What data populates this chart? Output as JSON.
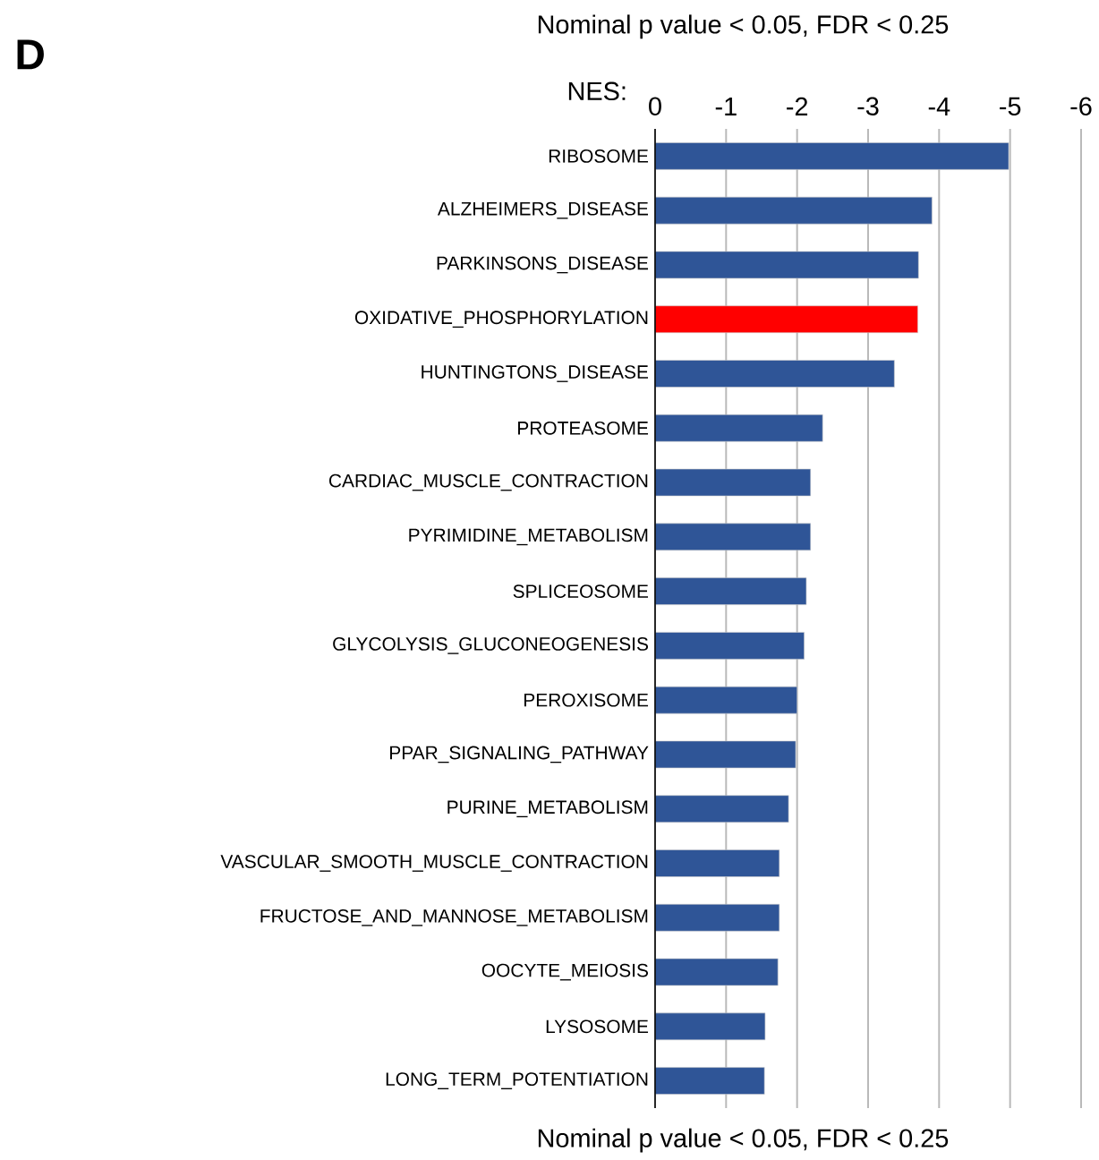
{
  "chart_data": {
    "type": "bar",
    "orientation": "horizontal",
    "xlabel": "NES:",
    "categories": [
      "RIBOSOME",
      "ALZHEIMERS_DISEASE",
      "PARKINSONS_DISEASE",
      "OXIDATIVE_PHOSPHORYLATION",
      "HUNTINGTONS_DISEASE",
      "PROTEASOME",
      "CARDIAC_MUSCLE_CONTRACTION",
      "PYRIMIDINE_METABOLISM",
      "SPLICEOSOME",
      "GLYCOLYSIS_GLUCONEOGENESIS",
      "PEROXISOME",
      "PPAR_SIGNALING_PATHWAY",
      "PURINE_METABOLISM",
      "VASCULAR_SMOOTH_MUSCLE_CONTRACTION",
      "FRUCTOSE_AND_MANNOSE_METABOLISM",
      "OOCYTE_MEIOSIS",
      "LYSOSOME",
      "LONG_TERM_POTENTIATION"
    ],
    "values": [
      -4.98,
      -3.9,
      -3.71,
      -3.7,
      -3.37,
      -2.36,
      -2.19,
      -2.19,
      -2.13,
      -2.1,
      -2.0,
      -1.98,
      -1.88,
      -1.75,
      -1.75,
      -1.73,
      -1.55,
      -1.54
    ],
    "colors": [
      "#2f5597",
      "#2f5597",
      "#2f5597",
      "#ff0000",
      "#2f5597",
      "#2f5597",
      "#2f5597",
      "#2f5597",
      "#2f5597",
      "#2f5597",
      "#2f5597",
      "#2f5597",
      "#2f5597",
      "#2f5597",
      "#2f5597",
      "#2f5597",
      "#2f5597",
      "#2f5597"
    ],
    "xlim": [
      0,
      -6
    ],
    "xticks": [
      0,
      -1,
      -2,
      -3,
      -4,
      -5,
      -6
    ],
    "grid": "x",
    "annotations": [
      "Nominal p value < 0.05, FDR < 0.25",
      "D",
      "Nominal p value < 0.05, FDR < 0.25"
    ]
  }
}
